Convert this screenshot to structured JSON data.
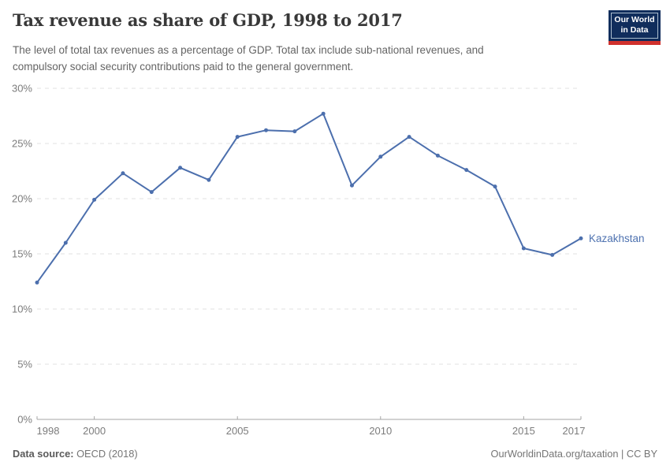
{
  "header": {
    "title": "Tax revenue as share of GDP, 1998 to 2017",
    "subtitle_line1": "The level of total tax revenues as a percentage of GDP. Total tax include sub-national revenues, and",
    "subtitle_line2": "compulsory social security contributions paid to the general government.",
    "logo": {
      "line1": "Our World",
      "line2": "in Data",
      "bg_color": "#102d5c",
      "accent_color": "#d0312d"
    }
  },
  "chart_data": {
    "type": "line",
    "title": "Tax revenue as share of GDP, 1998 to 2017",
    "xlabel": "",
    "ylabel": "",
    "xlim": [
      1998,
      2017
    ],
    "ylim": [
      0,
      30
    ],
    "grid": "horizontal-dashed",
    "legend_position": "end-of-line-label",
    "x_ticks": [
      1998,
      2000,
      2005,
      2010,
      2015,
      2017
    ],
    "x_tick_labels": [
      "1998",
      "2000",
      "2005",
      "2010",
      "2015",
      "2017"
    ],
    "y_ticks": [
      0,
      5,
      10,
      15,
      20,
      25,
      30
    ],
    "y_tick_labels": [
      "0%",
      "5%",
      "10%",
      "15%",
      "20%",
      "25%",
      "30%"
    ],
    "series": [
      {
        "name": "Kazakhstan",
        "color": "#4c6fad",
        "label_color": "#4e72b0",
        "x": [
          1998,
          1999,
          2000,
          2001,
          2002,
          2003,
          2004,
          2005,
          2006,
          2007,
          2008,
          2009,
          2010,
          2011,
          2012,
          2013,
          2014,
          2015,
          2016,
          2017
        ],
        "values": [
          12.4,
          16.0,
          19.9,
          22.3,
          20.6,
          22.8,
          21.7,
          25.6,
          26.2,
          26.1,
          27.7,
          21.2,
          23.8,
          25.6,
          23.9,
          22.6,
          21.1,
          15.5,
          14.9,
          16.4
        ]
      }
    ],
    "colors": {
      "gridline": "#e0e0e0",
      "axis": "#a5a5a5",
      "tick_label": "#7c7c7c"
    }
  },
  "footer": {
    "source_label": "Data source:",
    "source_value": " OECD (2018)",
    "right_text": "OurWorldinData.org/taxation | CC BY"
  }
}
